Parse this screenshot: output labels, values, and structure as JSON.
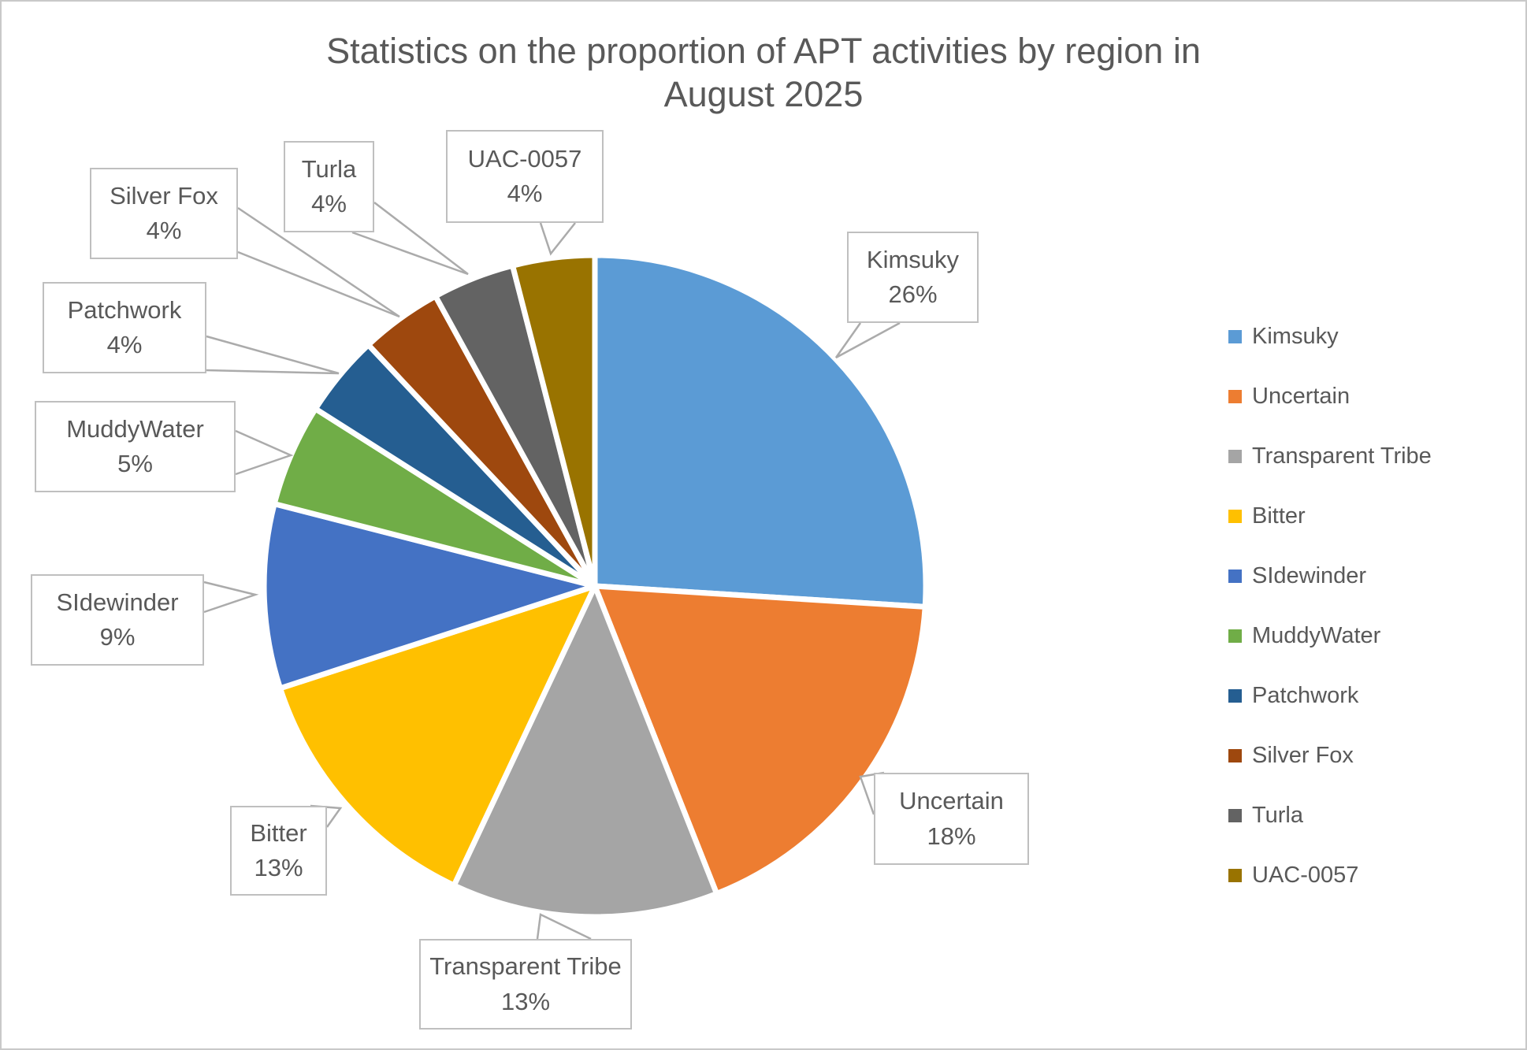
{
  "chart_data": {
    "type": "pie",
    "title": "Statistics on the proportion of APT activities by region in August 2025",
    "title_lines": [
      "Statistics on the proportion of APT activities by region in",
      "August 2025"
    ],
    "legend_position": "right",
    "data_labels": "category name and percentage, shown in external callout boxes",
    "slices": [
      {
        "label": "Kimsuky",
        "value": 26,
        "pct_label": "26%",
        "color": "#5B9BD5"
      },
      {
        "label": "Uncertain",
        "value": 18,
        "pct_label": "18%",
        "color": "#ED7D31"
      },
      {
        "label": "Transparent Tribe",
        "value": 13,
        "pct_label": "13%",
        "color": "#A5A5A5"
      },
      {
        "label": "Bitter",
        "value": 13,
        "pct_label": "13%",
        "color": "#FFC000"
      },
      {
        "label": "SIdewinder",
        "value": 9,
        "pct_label": "9%",
        "color": "#4472C4"
      },
      {
        "label": "MuddyWater",
        "value": 5,
        "pct_label": "5%",
        "color": "#70AD47"
      },
      {
        "label": "Patchwork",
        "value": 4,
        "pct_label": "4%",
        "color": "#255E91"
      },
      {
        "label": "Silver Fox",
        "value": 4,
        "pct_label": "4%",
        "color": "#9E480E"
      },
      {
        "label": "Turla",
        "value": 4,
        "pct_label": "4%",
        "color": "#636363"
      },
      {
        "label": "UAC-0057",
        "value": 4,
        "pct_label": "4%",
        "color": "#997300"
      }
    ],
    "colors": {
      "title_text": "#595959",
      "callout_border": "#BFBFBF",
      "leader_line": "#ABABAB",
      "slice_separator": "#FFFFFF"
    }
  }
}
